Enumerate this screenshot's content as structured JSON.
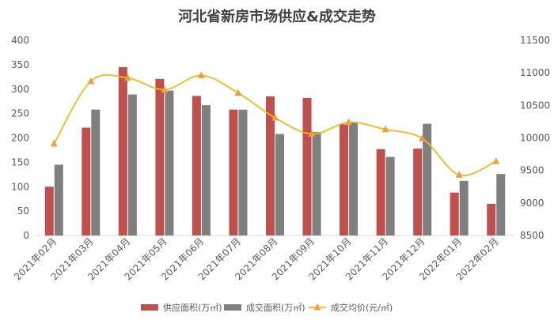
{
  "chart_data": {
    "type": "bar",
    "title": "河北省新房市场供应&成交走势",
    "categories": [
      "2021年02月",
      "2021年03月",
      "2021年04月",
      "2021年05月",
      "2021年06月",
      "2021年07月",
      "2021年08月",
      "2021年09月",
      "2021年10月",
      "2021年11月",
      "2021年12月",
      "2022年01月",
      "2022年02月"
    ],
    "series": [
      {
        "name": "供应面积(万㎡)",
        "kind": "bar",
        "axis": "left",
        "color": "#c0504d",
        "values": [
          100,
          221,
          345,
          321,
          286,
          258,
          285,
          282,
          228,
          177,
          178,
          88,
          65
        ]
      },
      {
        "name": "成交面积(万㎡)",
        "kind": "bar",
        "axis": "left",
        "color": "#7f7f7f",
        "values": [
          145,
          258,
          289,
          297,
          267,
          258,
          208,
          212,
          232,
          161,
          229,
          112,
          126
        ]
      },
      {
        "name": "成交均价(元/㎡)",
        "kind": "line",
        "axis": "right",
        "color": "#f4b81c",
        "smooth": true,
        "values": [
          9910,
          10870,
          10920,
          10740,
          10960,
          10690,
          10310,
          10060,
          10240,
          10130,
          9990,
          9430,
          9640
        ]
      }
    ],
    "y_left": {
      "min": 0,
      "max": 400,
      "ticks": [
        0,
        50,
        100,
        150,
        200,
        250,
        300,
        350,
        400
      ]
    },
    "y_right": {
      "min": 8500,
      "max": 11500,
      "ticks": [
        8500,
        9000,
        9500,
        10000,
        10500,
        11000,
        11500
      ]
    },
    "grid": false,
    "legend": "bottom"
  }
}
